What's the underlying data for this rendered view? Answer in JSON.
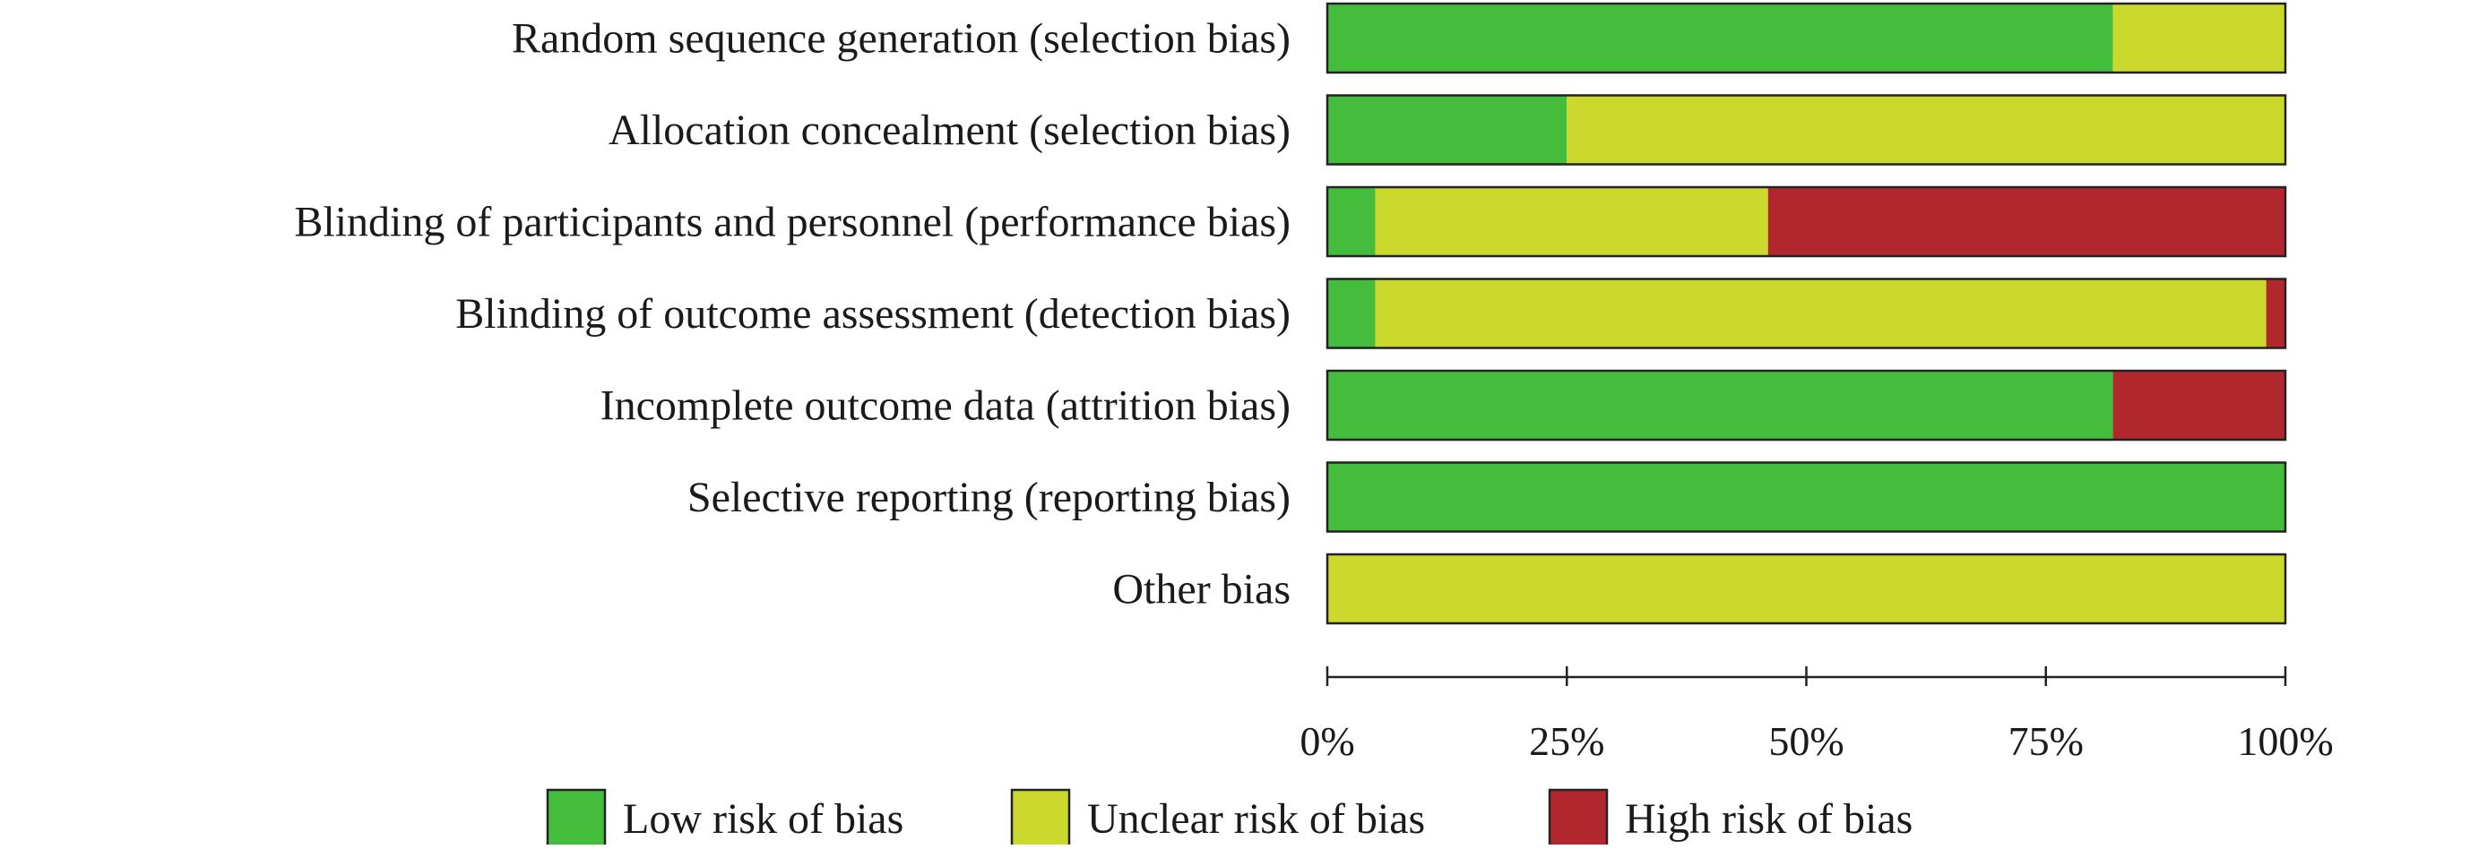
{
  "chart_data": {
    "type": "bar",
    "orientation": "horizontal",
    "stacked": true,
    "categories": [
      "Random sequence generation (selection bias)",
      "Allocation concealment (selection bias)",
      "Blinding of participants and personnel (performance bias)",
      "Blinding of outcome assessment (detection bias)",
      "Incomplete outcome data (attrition bias)",
      "Selective reporting (reporting bias)",
      "Other bias"
    ],
    "series": [
      {
        "name": "Low risk of bias",
        "color": "#45bd3c",
        "values": [
          82,
          25,
          5,
          5,
          82,
          100,
          0
        ]
      },
      {
        "name": "Unclear risk of bias",
        "color": "#cbd82c",
        "values": [
          18,
          75,
          41,
          93,
          0,
          0,
          100
        ]
      },
      {
        "name": "High risk of bias",
        "color": "#b2262d",
        "values": [
          0,
          0,
          54,
          2,
          18,
          0,
          0
        ]
      }
    ],
    "xlim": [
      0,
      100
    ],
    "xticks": [
      0,
      25,
      50,
      75,
      100
    ],
    "xtick_labels": [
      "0%",
      "25%",
      "50%",
      "75%",
      "100%"
    ],
    "grid": false,
    "legend_position": "bottom"
  }
}
